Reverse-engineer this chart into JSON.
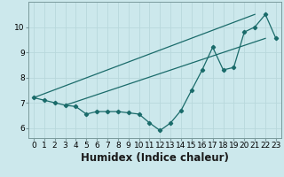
{
  "xlabel": "Humidex (Indice chaleur)",
  "background_color": "#cce8ec",
  "line_color": "#1a6b6a",
  "x_data": [
    0,
    1,
    2,
    3,
    4,
    5,
    6,
    7,
    8,
    9,
    10,
    11,
    12,
    13,
    14,
    15,
    16,
    17,
    18,
    19,
    20,
    21,
    22,
    23
  ],
  "y_main": [
    7.2,
    7.1,
    7.0,
    6.9,
    6.85,
    6.55,
    6.65,
    6.65,
    6.65,
    6.6,
    6.55,
    6.2,
    5.9,
    6.2,
    6.7,
    7.5,
    8.3,
    9.2,
    8.3,
    8.4,
    9.8,
    10.0,
    10.5,
    9.55
  ],
  "trend1_x": [
    0,
    21
  ],
  "trend1_y": [
    7.2,
    10.5
  ],
  "trend2_x": [
    3,
    22
  ],
  "trend2_y": [
    6.9,
    9.55
  ],
  "ylim": [
    5.6,
    11.0
  ],
  "xlim": [
    -0.5,
    23.5
  ],
  "grid_color": "#b8d8dc",
  "tick_fontsize": 6.5,
  "xlabel_fontsize": 8.5,
  "yticks": [
    6,
    7,
    8,
    9,
    10
  ],
  "xticks": [
    0,
    1,
    2,
    3,
    4,
    5,
    6,
    7,
    8,
    9,
    10,
    11,
    12,
    13,
    14,
    15,
    16,
    17,
    18,
    19,
    20,
    21,
    22,
    23
  ]
}
